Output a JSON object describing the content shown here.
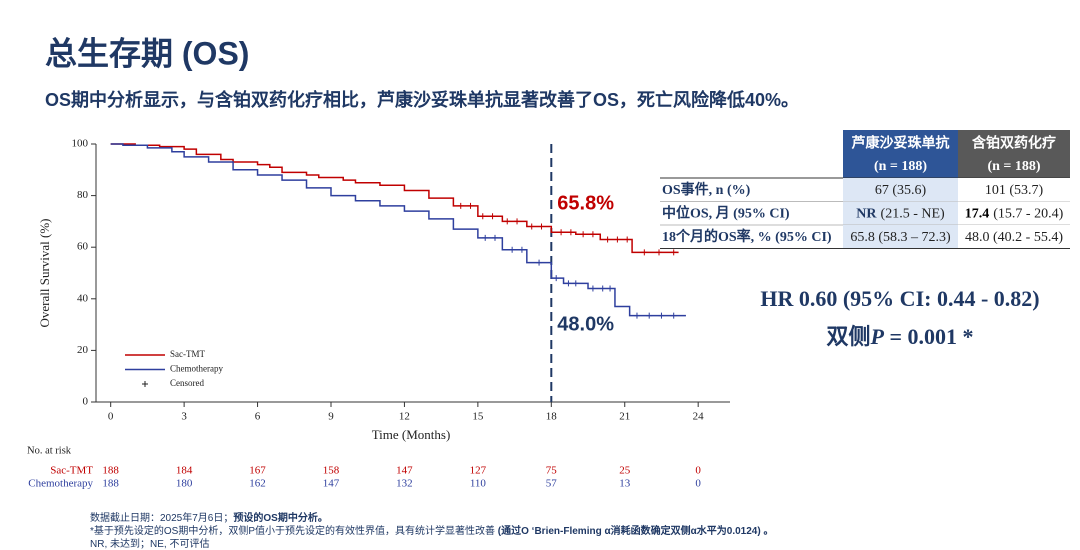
{
  "header": {
    "title": "总生存期 (OS)",
    "subtitle": "OS期中分析显示，与含铂双药化疗相比，芦康沙妥珠单抗显著改善了OS，死亡风险降低40%。"
  },
  "chart_data": {
    "type": "step",
    "xlabel": "Time (Months)",
    "ylabel": "Overall Survival (%)",
    "xlim": [
      -0.6,
      25.3
    ],
    "ylim": [
      0,
      100
    ],
    "xticks": [
      0,
      3,
      6,
      9,
      12,
      15,
      18,
      21,
      24
    ],
    "yticks": [
      0,
      20,
      40,
      60,
      80,
      100
    ],
    "reference_line": 18,
    "annotations": [
      {
        "text": "65.8%",
        "color": "#c00000"
      },
      {
        "text": "48.0%",
        "color": "#1f3864"
      }
    ],
    "censor_label": "Censored",
    "series": [
      {
        "name": "Sac-TMT",
        "color": "#c00000",
        "x": [
          0,
          1,
          2,
          3,
          3.5,
          4.5,
          5,
          6,
          6.5,
          7,
          8,
          8.5,
          9.5,
          10,
          11,
          12,
          13,
          14,
          15,
          16,
          17,
          18,
          19,
          20,
          21.3,
          23.2
        ],
        "y": [
          100,
          99.5,
          99,
          98,
          96,
          94,
          93,
          92,
          91,
          89,
          88,
          87,
          86,
          85,
          84,
          82,
          79,
          76,
          72,
          70,
          68,
          65.8,
          65,
          63,
          58,
          58
        ],
        "censored_x": [
          14.3,
          14.7,
          15.2,
          15.6,
          16.2,
          16.6,
          17.2,
          17.6,
          18.4,
          18.8,
          19.3,
          19.7,
          20.3,
          20.7,
          21.1,
          21.8,
          22.4,
          23.0
        ],
        "censored_y": [
          76,
          76,
          72,
          72,
          70,
          70,
          68,
          68,
          65.8,
          65.8,
          65,
          65,
          63,
          63,
          63,
          58,
          58,
          58
        ]
      },
      {
        "name": "Chemotherapy",
        "color": "#2e3f9e",
        "x": [
          0,
          0.5,
          1.5,
          2.5,
          3,
          4,
          5,
          6,
          7,
          8,
          9,
          10,
          11,
          12,
          13,
          14,
          15,
          16,
          17,
          18,
          18.5,
          19.5,
          20.6,
          21.2,
          23.5
        ],
        "y": [
          100,
          99.5,
          98.5,
          97,
          95,
          93,
          90,
          88,
          86,
          83,
          80,
          78,
          76,
          74,
          71,
          67,
          63.6,
          59,
          54,
          48,
          46,
          44,
          37,
          33.5,
          33.5
        ],
        "censored_x": [
          15.3,
          15.7,
          16.4,
          16.8,
          17.5,
          18.2,
          18.7,
          19.0,
          19.7,
          20.1,
          20.4,
          21.5,
          22.0,
          22.5,
          23.0
        ],
        "censored_y": [
          63.6,
          63.6,
          59,
          59,
          54,
          48,
          46,
          46,
          44,
          44,
          44,
          33.5,
          33.5,
          33.5,
          33.5
        ]
      }
    ],
    "risk_table": {
      "title": "No. at risk",
      "rows": [
        {
          "name": "Sac-TMT",
          "values": [
            188,
            184,
            167,
            158,
            147,
            127,
            75,
            25,
            0
          ]
        },
        {
          "name": "Chemotherapy",
          "values": [
            188,
            180,
            162,
            147,
            132,
            110,
            57,
            13,
            0
          ]
        }
      ]
    }
  },
  "table": {
    "columns": [
      {
        "name": "芦康沙妥珠单抗",
        "n": "(n = 188)"
      },
      {
        "name": "含铂双药化疗",
        "n": "(n = 188)"
      }
    ],
    "rows": [
      {
        "label": "OS事件, n (%)",
        "cells": [
          {
            "text": "67 (35.6)"
          },
          {
            "text": "101 (53.7)"
          }
        ]
      },
      {
        "label": "中位OS, 月 (95% CI)",
        "cells": [
          {
            "bold": "NR",
            "text": "(21.5 - NE)"
          },
          {
            "bold": "17.4",
            "text": "(15.7 - 20.4)"
          }
        ]
      },
      {
        "label": "18个月的OS率, % (95% CI)",
        "cells": [
          {
            "text": "65.8 (58.3 – 72.3)"
          },
          {
            "text": "48.0 (40.2 - 55.4)"
          }
        ]
      }
    ]
  },
  "hr": {
    "text": "HR 0.60 (95% CI: 0.44 - 0.82)",
    "p_prefix": "双侧",
    "p_symbol": "P",
    "p_value": " = 0.001 *"
  },
  "footnotes": [
    {
      "text": "数据截止日期：2025年7月6日；",
      "bold": "预设的OS期中分析。"
    },
    {
      "text": "*基于预先设定的OS期中分析，双侧P值小于预先设定的有效性界值，具有统计学显著性改善 ",
      "bold": "(通过O ‘Brien-Fleming α消耗函数确定双侧α水平为0.0124) 。"
    },
    {
      "text": "NR, 未达到；NE, 不可评估"
    }
  ]
}
